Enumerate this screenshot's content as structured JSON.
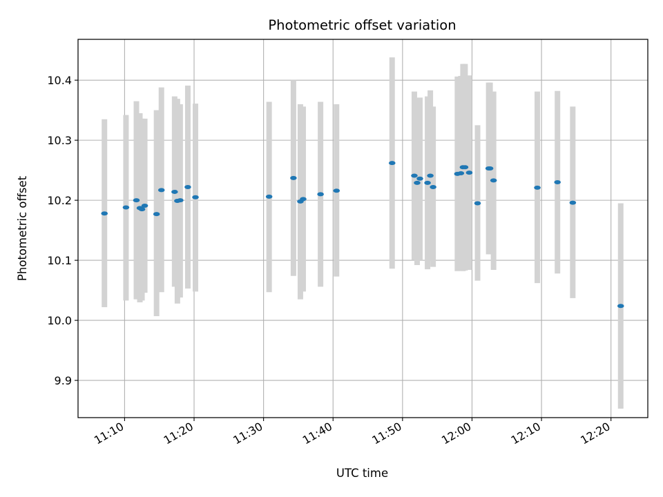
{
  "chart_data": {
    "type": "scatter",
    "title": "Photometric offset variation",
    "xlabel": "UTC time",
    "ylabel": "Photometric offset",
    "x_unit": "clock time",
    "xlim": [
      "11:03:18",
      "12:25:18"
    ],
    "ylim": [
      9.838,
      10.468
    ],
    "x_ticks": [
      "11:10",
      "11:20",
      "11:30",
      "11:40",
      "11:50",
      "12:00",
      "12:10",
      "12:20"
    ],
    "y_ticks": [
      9.9,
      10.0,
      10.1,
      10.2,
      10.3,
      10.4
    ],
    "y_tick_labels": [
      "9.9",
      "10.0",
      "10.1",
      "10.2",
      "10.3",
      "10.4"
    ],
    "grid": true,
    "point_color": "#1f77b4",
    "errorbar_color": "#d3d3d3",
    "points": [
      {
        "time": "11:07:06",
        "y": 10.178,
        "ylow": 10.022,
        "yhigh": 10.335
      },
      {
        "time": "11:10:12",
        "y": 10.188,
        "ylow": 10.033,
        "yhigh": 10.342
      },
      {
        "time": "11:11:42",
        "y": 10.2,
        "ylow": 10.035,
        "yhigh": 10.365
      },
      {
        "time": "11:12:12",
        "y": 10.187,
        "ylow": 10.03,
        "yhigh": 10.345
      },
      {
        "time": "11:12:30",
        "y": 10.185,
        "ylow": 10.033,
        "yhigh": 10.336
      },
      {
        "time": "11:12:54",
        "y": 10.191,
        "ylow": 10.046,
        "yhigh": 10.336
      },
      {
        "time": "11:14:36",
        "y": 10.177,
        "ylow": 10.007,
        "yhigh": 10.35
      },
      {
        "time": "11:15:18",
        "y": 10.217,
        "ylow": 10.047,
        "yhigh": 10.388
      },
      {
        "time": "11:17:12",
        "y": 10.214,
        "ylow": 10.056,
        "yhigh": 10.373
      },
      {
        "time": "11:17:36",
        "y": 10.199,
        "ylow": 10.028,
        "yhigh": 10.369
      },
      {
        "time": "11:18:00",
        "y": 10.2,
        "ylow": 10.038,
        "yhigh": 10.36
      },
      {
        "time": "11:19:06",
        "y": 10.222,
        "ylow": 10.053,
        "yhigh": 10.391
      },
      {
        "time": "11:20:12",
        "y": 10.205,
        "ylow": 10.048,
        "yhigh": 10.361
      },
      {
        "time": "11:30:48",
        "y": 10.206,
        "ylow": 10.047,
        "yhigh": 10.364
      },
      {
        "time": "11:34:18",
        "y": 10.237,
        "ylow": 10.074,
        "yhigh": 10.4
      },
      {
        "time": "11:35:18",
        "y": 10.198,
        "ylow": 10.035,
        "yhigh": 10.36
      },
      {
        "time": "11:35:42",
        "y": 10.202,
        "ylow": 10.048,
        "yhigh": 10.356
      },
      {
        "time": "11:38:12",
        "y": 10.21,
        "ylow": 10.056,
        "yhigh": 10.364
      },
      {
        "time": "11:40:30",
        "y": 10.216,
        "ylow": 10.073,
        "yhigh": 10.36
      },
      {
        "time": "11:48:30",
        "y": 10.262,
        "ylow": 10.086,
        "yhigh": 10.438
      },
      {
        "time": "11:51:42",
        "y": 10.241,
        "ylow": 10.101,
        "yhigh": 10.381
      },
      {
        "time": "11:52:06",
        "y": 10.229,
        "ylow": 10.092,
        "yhigh": 10.369
      },
      {
        "time": "11:52:30",
        "y": 10.236,
        "ylow": 10.099,
        "yhigh": 10.371
      },
      {
        "time": "11:53:36",
        "y": 10.229,
        "ylow": 10.085,
        "yhigh": 10.373
      },
      {
        "time": "11:54:00",
        "y": 10.241,
        "ylow": 10.099,
        "yhigh": 10.383
      },
      {
        "time": "11:54:24",
        "y": 10.222,
        "ylow": 10.089,
        "yhigh": 10.356
      },
      {
        "time": "11:57:54",
        "y": 10.244,
        "ylow": 10.082,
        "yhigh": 10.406
      },
      {
        "time": "11:58:24",
        "y": 10.245,
        "ylow": 10.083,
        "yhigh": 10.407
      },
      {
        "time": "11:58:42",
        "y": 10.255,
        "ylow": 10.082,
        "yhigh": 10.427
      },
      {
        "time": "11:59:00",
        "y": 10.255,
        "ylow": 10.083,
        "yhigh": 10.427
      },
      {
        "time": "11:59:36",
        "y": 10.246,
        "ylow": 10.084,
        "yhigh": 10.408
      },
      {
        "time": "12:00:48",
        "y": 10.195,
        "ylow": 10.066,
        "yhigh": 10.325
      },
      {
        "time": "12:02:24",
        "y": 10.253,
        "ylow": 10.11,
        "yhigh": 10.396
      },
      {
        "time": "12:02:36",
        "y": 10.253,
        "ylow": 10.11,
        "yhigh": 10.396
      },
      {
        "time": "12:03:06",
        "y": 10.233,
        "ylow": 10.084,
        "yhigh": 10.381
      },
      {
        "time": "12:09:24",
        "y": 10.221,
        "ylow": 10.062,
        "yhigh": 10.381
      },
      {
        "time": "12:12:18",
        "y": 10.23,
        "ylow": 10.078,
        "yhigh": 10.382
      },
      {
        "time": "12:14:30",
        "y": 10.196,
        "ylow": 10.037,
        "yhigh": 10.356
      },
      {
        "time": "12:21:24",
        "y": 10.024,
        "ylow": 9.853,
        "yhigh": 10.195
      }
    ]
  }
}
